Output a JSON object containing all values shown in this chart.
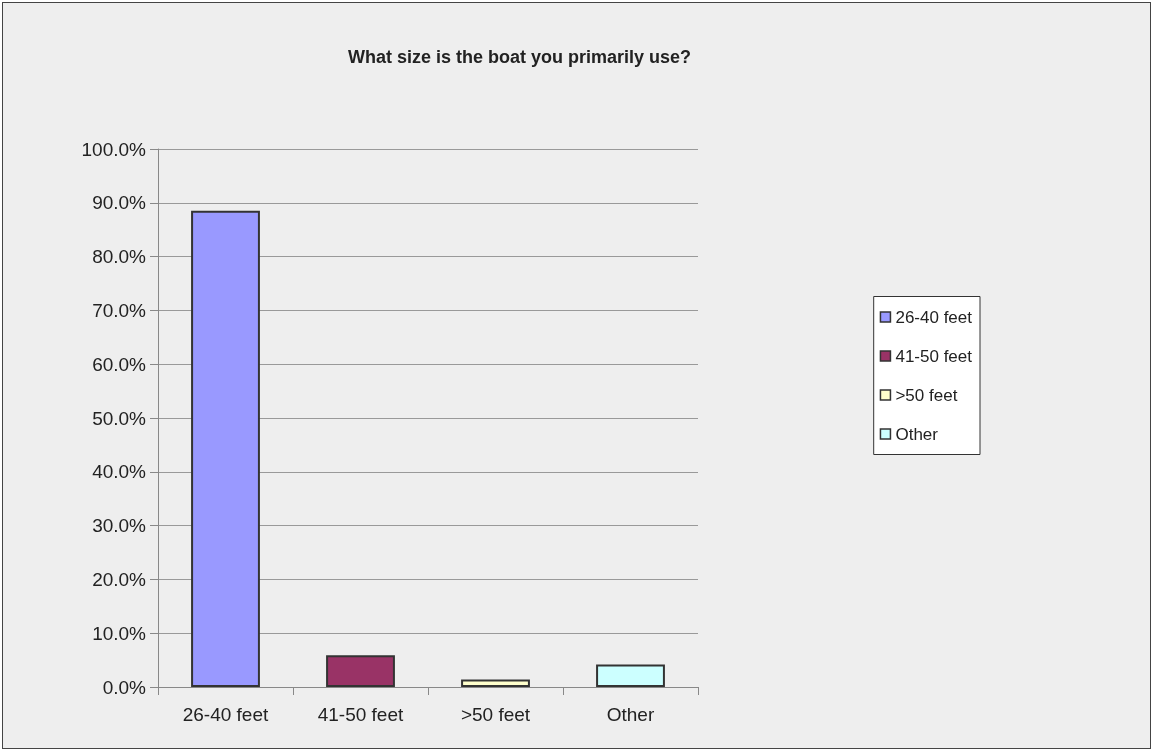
{
  "chart_data": {
    "type": "bar",
    "title": "What size is the boat you primarily use?",
    "categories": [
      "26-40 feet",
      "41-50 feet",
      ">50 feet",
      "Other"
    ],
    "series": [
      {
        "name": "26-40 feet",
        "color": "#9999ff",
        "values": [
          88.5,
          null,
          null,
          null
        ]
      },
      {
        "name": "41-50 feet",
        "color": "#993366",
        "values": [
          null,
          5.9,
          null,
          null
        ]
      },
      {
        "name": ">50 feet",
        "color": "#ffffcc",
        "values": [
          null,
          null,
          1.4,
          null
        ]
      },
      {
        "name": "Other",
        "color": "#ccffff",
        "values": [
          null,
          null,
          null,
          4.2
        ]
      }
    ],
    "stacked": true,
    "ylim": [
      0,
      100
    ],
    "yticks": [
      {
        "value": 0,
        "label": "0.0%"
      },
      {
        "value": 10,
        "label": "10.0%"
      },
      {
        "value": 20,
        "label": "20.0%"
      },
      {
        "value": 30,
        "label": "30.0%"
      },
      {
        "value": 40,
        "label": "40.0%"
      },
      {
        "value": 50,
        "label": "50.0%"
      },
      {
        "value": 60,
        "label": "60.0%"
      },
      {
        "value": 70,
        "label": "70.0%"
      },
      {
        "value": 80,
        "label": "80.0%"
      },
      {
        "value": 90,
        "label": "90.0%"
      },
      {
        "value": 100,
        "label": "100.0%"
      }
    ],
    "grid": "y",
    "legend": "right"
  }
}
